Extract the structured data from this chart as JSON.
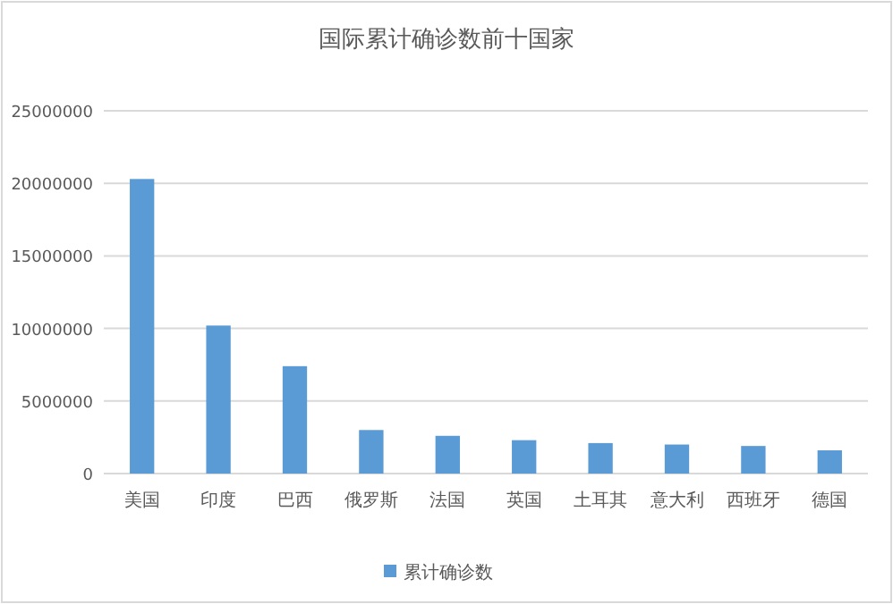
{
  "chart_data": {
    "type": "bar",
    "title": "国际累计确诊数前十国家",
    "categories": [
      "美国",
      "印度",
      "巴西",
      "俄罗斯",
      "法国",
      "英国",
      "土耳其",
      "意大利",
      "西班牙",
      "德国"
    ],
    "series": [
      {
        "name": "累计确诊数",
        "color": "#5b9bd5",
        "values": [
          20300000,
          10200000,
          7400000,
          3000000,
          2600000,
          2300000,
          2100000,
          2000000,
          1900000,
          1600000
        ]
      }
    ],
    "ylim": [
      0,
      25000000
    ],
    "yticks": [
      0,
      5000000,
      10000000,
      15000000,
      20000000,
      25000000
    ],
    "grid": "y",
    "legend": "bottom"
  }
}
